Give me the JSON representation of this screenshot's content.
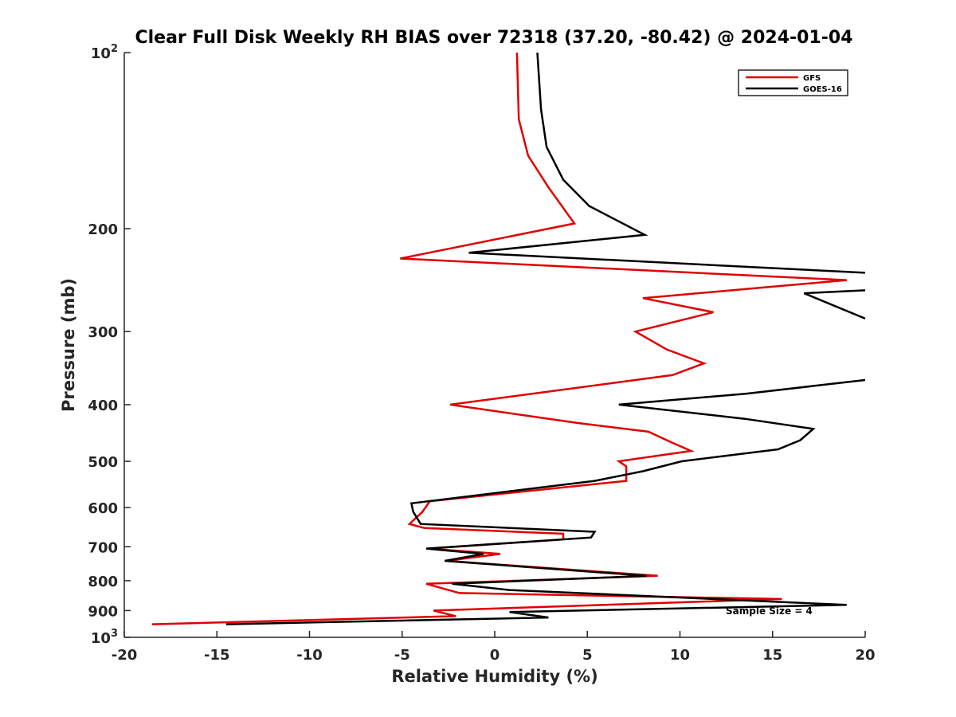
{
  "chart_data": {
    "type": "line",
    "title": "Clear Full Disk Weekly RH BIAS over 72318 (37.20, -80.42) @ 2024-01-04",
    "xlabel": "Relative Humidity (%)",
    "ylabel": "Pressure (mb)",
    "xlim": [
      -20,
      20
    ],
    "ylim": [
      100,
      1000
    ],
    "y_scale": "log",
    "y_reversed": true,
    "grid": false,
    "legend_position": "top-right",
    "x_ticks": [
      "-20",
      "-15",
      "-10",
      "-5",
      "0",
      "5",
      "10",
      "15",
      "20"
    ],
    "y_ticks": [
      {
        "value": 100,
        "label": "10",
        "sup": "2"
      },
      {
        "value": 200,
        "label": "200"
      },
      {
        "value": 300,
        "label": "300"
      },
      {
        "value": 400,
        "label": "400"
      },
      {
        "value": 500,
        "label": "500"
      },
      {
        "value": 600,
        "label": "600"
      },
      {
        "value": 700,
        "label": "700"
      },
      {
        "value": 800,
        "label": "800"
      },
      {
        "value": 900,
        "label": "900"
      },
      {
        "value": 1000,
        "label": "10",
        "sup": "3"
      }
    ],
    "series": [
      {
        "name": "GFS",
        "color": "#e00000",
        "points": [
          [
            1.2,
            100
          ],
          [
            1.3,
            130
          ],
          [
            1.8,
            150
          ],
          [
            2.9,
            170
          ],
          [
            4.3,
            196
          ],
          [
            -5.1,
            225
          ],
          [
            19.0,
            245
          ],
          [
            8.0,
            263
          ],
          [
            11.8,
            278
          ],
          [
            7.6,
            300
          ],
          [
            9.3,
            322
          ],
          [
            11.3,
            340
          ],
          [
            9.6,
            356
          ],
          [
            -2.4,
            400
          ],
          [
            4.5,
            430
          ],
          [
            8.3,
            445
          ],
          [
            9.6,
            465
          ],
          [
            10.6,
            480
          ],
          [
            6.7,
            500
          ],
          [
            7.1,
            510
          ],
          [
            7.1,
            540
          ],
          [
            -3.5,
            585
          ],
          [
            -3.9,
            610
          ],
          [
            -4.6,
            640
          ],
          [
            -3.8,
            650
          ],
          [
            3.7,
            665
          ],
          [
            3.7,
            680
          ],
          [
            -3.6,
            705
          ],
          [
            0.3,
            720
          ],
          [
            -2.6,
            740
          ],
          [
            8.8,
            785
          ],
          [
            -3.7,
            810
          ],
          [
            -1.9,
            840
          ],
          [
            15.5,
            860
          ],
          [
            -3.3,
            900
          ],
          [
            -2.1,
            920
          ],
          [
            -18.5,
            950
          ]
        ]
      },
      {
        "name": "GOES-16",
        "color": "#000000",
        "points": [
          [
            2.3,
            100
          ],
          [
            2.5,
            125
          ],
          [
            2.8,
            145
          ],
          [
            3.7,
            165
          ],
          [
            5.1,
            183
          ],
          [
            8.1,
            205
          ],
          [
            -1.4,
            220
          ],
          [
            20,
            238
          ],
          [
            null,
            null
          ],
          [
            20,
            255
          ],
          [
            16.7,
            258
          ],
          [
            20,
            285
          ],
          [
            null,
            null
          ],
          [
            20,
            363
          ],
          [
            13.6,
            383
          ],
          [
            6.7,
            400
          ],
          [
            13.5,
            423
          ],
          [
            17.2,
            440
          ],
          [
            16.5,
            460
          ],
          [
            15.3,
            477
          ],
          [
            10.1,
            500
          ],
          [
            8.0,
            520
          ],
          [
            5.4,
            540
          ],
          [
            -4.5,
            590
          ],
          [
            -4.4,
            610
          ],
          [
            -4.0,
            640
          ],
          [
            5.4,
            660
          ],
          [
            5.2,
            675
          ],
          [
            -3.7,
            705
          ],
          [
            -0.6,
            720
          ],
          [
            -2.7,
            740
          ],
          [
            8.2,
            785
          ],
          [
            -2.3,
            810
          ],
          [
            0.8,
            830
          ],
          [
            19.0,
            880
          ],
          [
            0.8,
            905
          ],
          [
            2.9,
            925
          ],
          [
            -14.5,
            950
          ]
        ]
      }
    ],
    "annotations": [
      "Sample Size = 4"
    ]
  }
}
